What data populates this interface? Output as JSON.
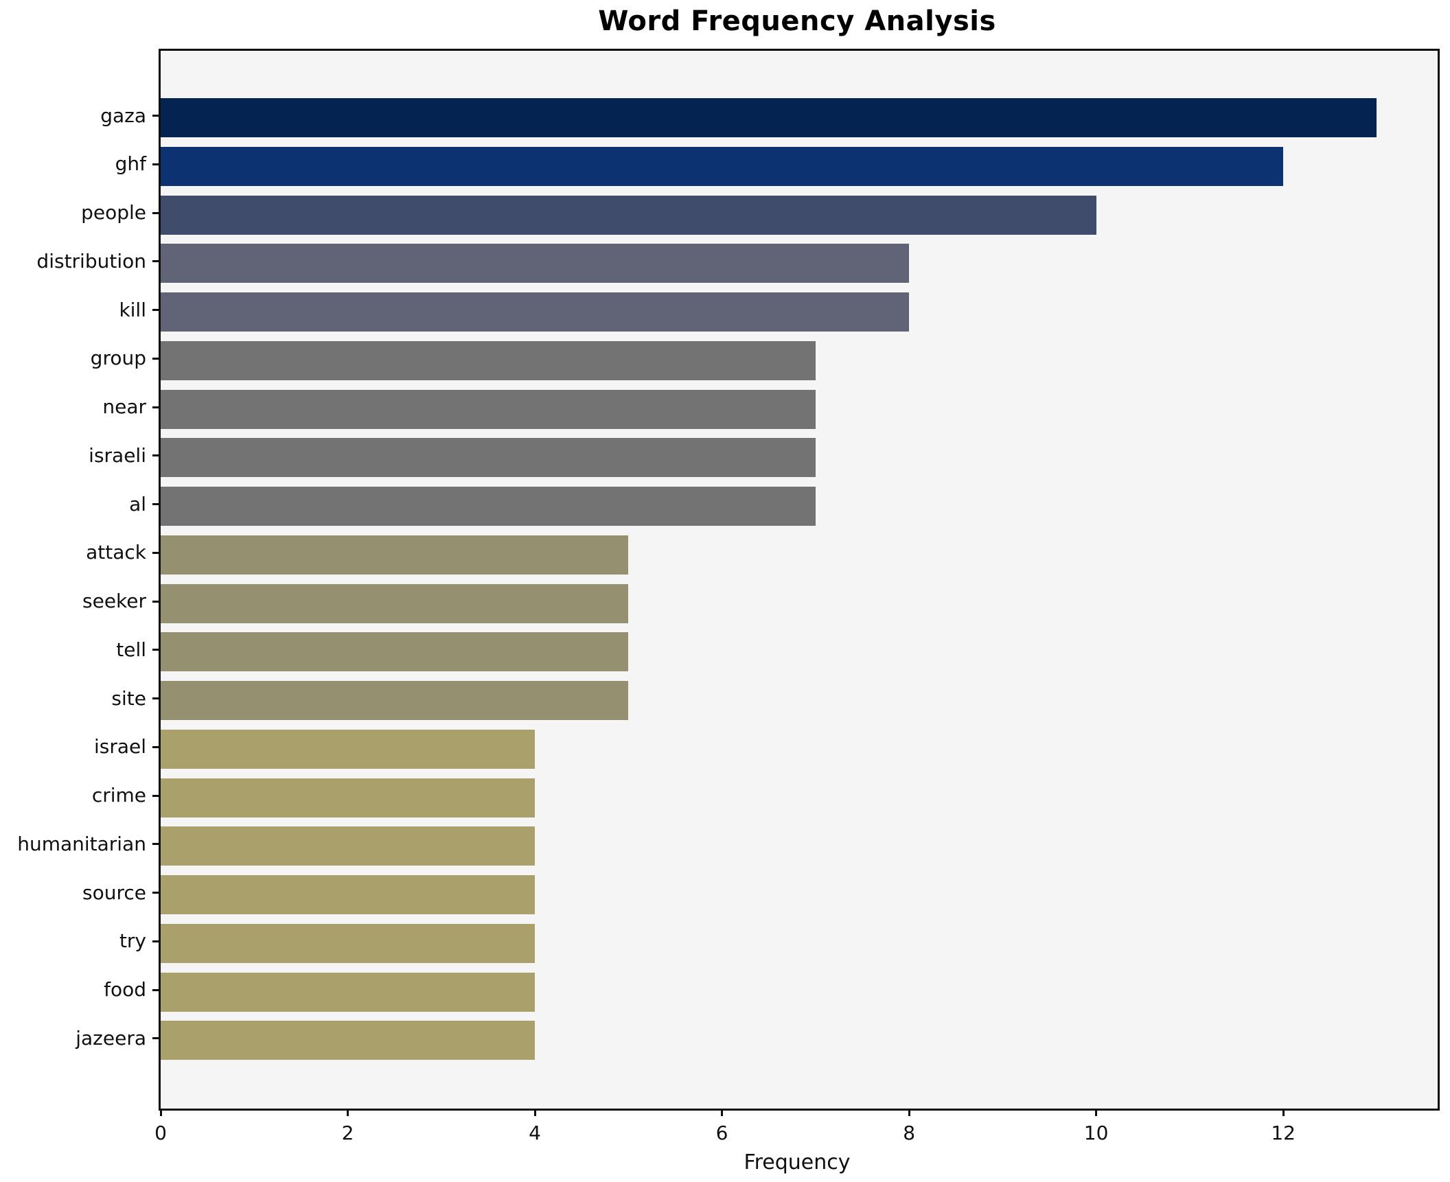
{
  "title": "Word Frequency Analysis",
  "chart_data": {
    "type": "bar",
    "orientation": "horizontal",
    "title": "Word Frequency Analysis",
    "xlabel": "Frequency",
    "ylabel": "",
    "categories": [
      "gaza",
      "ghf",
      "people",
      "distribution",
      "kill",
      "group",
      "near",
      "israeli",
      "al",
      "attack",
      "seeker",
      "tell",
      "site",
      "israel",
      "crime",
      "humanitarian",
      "source",
      "try",
      "food",
      "jazeera"
    ],
    "values": [
      13,
      12,
      10,
      8,
      8,
      7,
      7,
      7,
      7,
      5,
      5,
      5,
      5,
      4,
      4,
      4,
      4,
      4,
      4,
      4
    ],
    "bar_colors": [
      "#052350",
      "#0d3271",
      "#3f4c6b",
      "#616476",
      "#616476",
      "#737373",
      "#737373",
      "#737373",
      "#737373",
      "#949070",
      "#949070",
      "#949070",
      "#949070",
      "#a9a06c",
      "#a9a06c",
      "#a9a06c",
      "#a9a06c",
      "#a9a06c",
      "#a9a06c",
      "#a9a06c"
    ],
    "xticks": [
      0,
      2,
      4,
      6,
      8,
      10,
      12
    ],
    "xlim": [
      0,
      13.65
    ],
    "grid": false,
    "legend": null,
    "plot_background": "#f5f5f6",
    "figure_background": "#ffffff",
    "spine_color": "#0f0f0f"
  }
}
